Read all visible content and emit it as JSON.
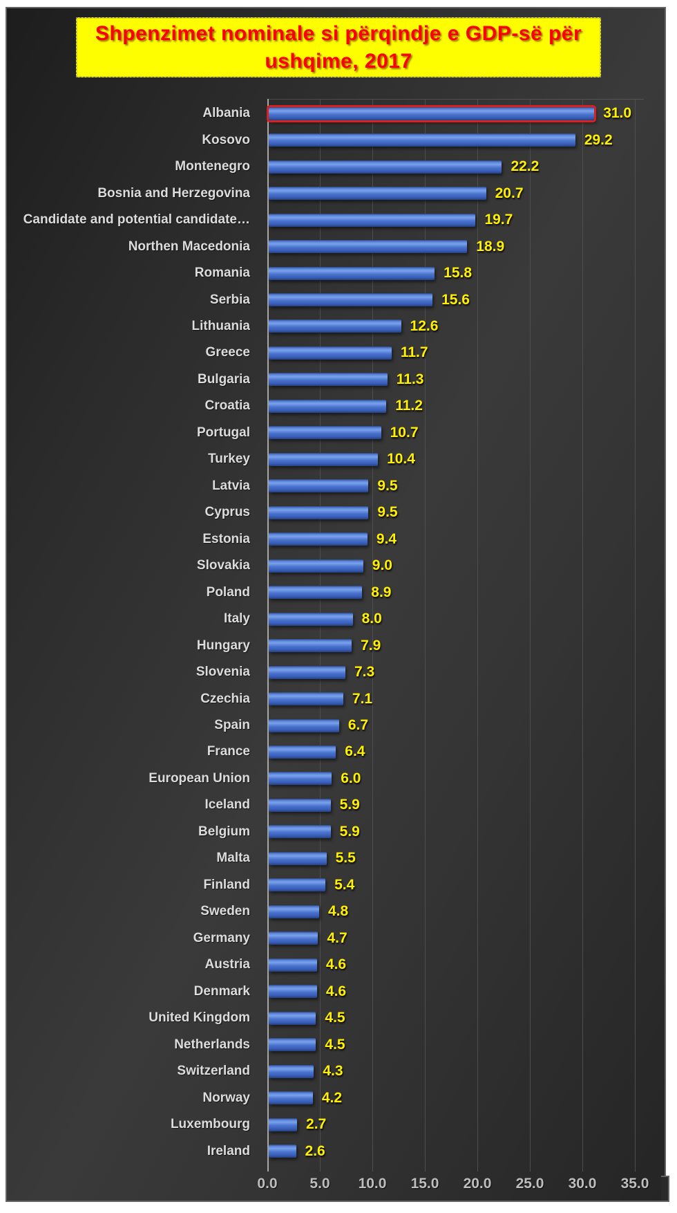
{
  "title": {
    "full": "Shpenzimet nominale si përqindje e GDP-së për ushqime, 2017",
    "line1": "Shpenzimet nominale si përqindje e GDP-së për",
    "line2": "ushqime, 2017"
  },
  "chart_data": {
    "type": "bar",
    "orientation": "horizontal",
    "title": "Shpenzimet nominale si përqindje e GDP-së për ushqime, 2017",
    "categories": [
      "Albania",
      "Kosovo",
      "Montenegro",
      "Bosnia and Herzegovina",
      "Candidate and potential candidate…",
      "Northen Macedonia",
      "Romania",
      "Serbia",
      "Lithuania",
      "Greece",
      "Bulgaria",
      "Croatia",
      "Portugal",
      "Turkey",
      "Latvia",
      "Cyprus",
      "Estonia",
      "Slovakia",
      "Poland",
      "Italy",
      "Hungary",
      "Slovenia",
      "Czechia",
      "Spain",
      "France",
      "European Union",
      "Iceland",
      "Belgium",
      "Malta",
      "Finland",
      "Sweden",
      "Germany",
      "Austria",
      "Denmark",
      "United Kingdom",
      "Netherlands",
      "Switzerland",
      "Norway",
      "Luxembourg",
      "Ireland"
    ],
    "values": [
      31.0,
      29.2,
      22.2,
      20.7,
      19.7,
      18.9,
      15.8,
      15.6,
      12.6,
      11.7,
      11.3,
      11.2,
      10.7,
      10.4,
      9.5,
      9.5,
      9.4,
      9.0,
      8.9,
      8.0,
      7.9,
      7.3,
      7.1,
      6.7,
      6.4,
      6.0,
      5.9,
      5.9,
      5.5,
      5.4,
      4.8,
      4.7,
      4.6,
      4.6,
      4.5,
      4.5,
      4.3,
      4.2,
      2.7,
      2.6
    ],
    "value_labels": [
      "31.0",
      "29.2",
      "22.2",
      "20.7",
      "19.7",
      "18.9",
      "15.8",
      "15.6",
      "12.6",
      "11.7",
      "11.3",
      "11.2",
      "10.7",
      "10.4",
      "9.5",
      "9.5",
      "9.4",
      "9.0",
      "8.9",
      "8.0",
      "7.9",
      "7.3",
      "7.1",
      "6.7",
      "6.4",
      "6.0",
      "5.9",
      "5.9",
      "5.5",
      "5.4",
      "4.8",
      "4.7",
      "4.6",
      "4.6",
      "4.5",
      "4.5",
      "4.3",
      "4.2",
      "2.7",
      "2.6"
    ],
    "highlighted_category": "Albania",
    "x_ticks": [
      "0.0",
      "5.0",
      "10.0",
      "15.0",
      "20.0",
      "25.0",
      "30.0",
      "35.0"
    ],
    "xlim": [
      0,
      35
    ],
    "grid": true,
    "legend": "none",
    "colors": {
      "bar_fill": "#4472c4",
      "highlight_border": "#d92121",
      "value_label": "#ffef00",
      "category_label": "#dcdcdc",
      "tick_label": "#bdbdbd",
      "title_text": "#fe0000",
      "title_background": "#fffe00",
      "chart_background": "#303030",
      "gridline": "#4e4e4e"
    }
  }
}
